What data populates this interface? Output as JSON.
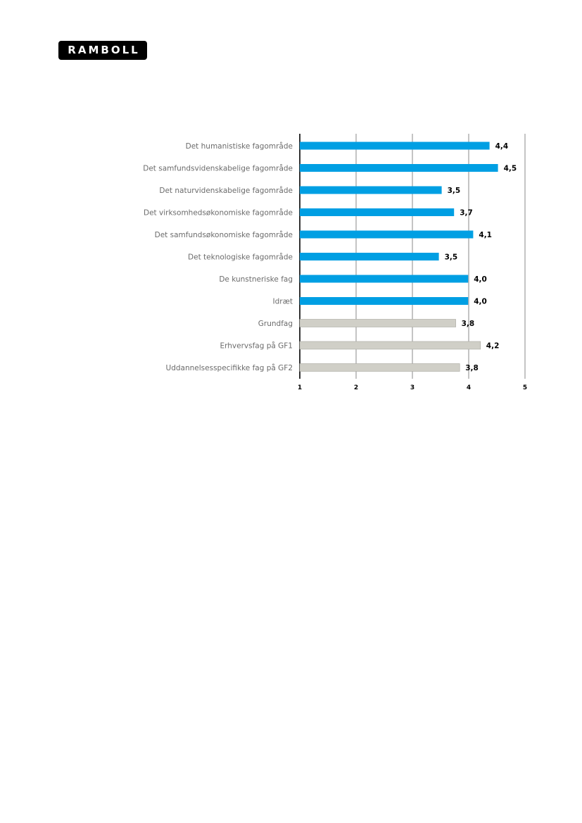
{
  "logo": {
    "text": "RAMBOLL"
  },
  "chart_data": {
    "type": "bar",
    "orientation": "horizontal",
    "categories": [
      "Det humanistiske fagområde",
      "Det samfundsvidenskabelige fagområde",
      "Det naturvidenskabelige fagområde",
      "Det virksomhedsøkonomiske fagområde",
      "Det samfundsøkonomiske fagområde",
      "Det teknologiske fagområde",
      "De kunstneriske fag",
      "Idræt",
      "Grundfag",
      "Erhvervsfag på GF1",
      "Uddannelsesspecifikke fag på GF2"
    ],
    "values": [
      4.37,
      4.52,
      3.52,
      3.74,
      4.08,
      3.47,
      3.99,
      3.99,
      3.77,
      4.21,
      3.84
    ],
    "value_labels": [
      "4,4",
      "4,5",
      "3,5",
      "3,7",
      "4,1",
      "3,5",
      "4,0",
      "4,0",
      "3,8",
      "4,2",
      "3,8"
    ],
    "colors": [
      "#009fe3",
      "#009fe3",
      "#009fe3",
      "#009fe3",
      "#009fe3",
      "#009fe3",
      "#009fe3",
      "#009fe3",
      "#d0cfc7",
      "#d0cfc7",
      "#d0cfc7"
    ],
    "xlim": [
      1,
      5
    ],
    "xticks": [
      "1",
      "2",
      "3",
      "4",
      "5"
    ],
    "grid": true,
    "title": "",
    "xlabel": "",
    "ylabel": ""
  }
}
